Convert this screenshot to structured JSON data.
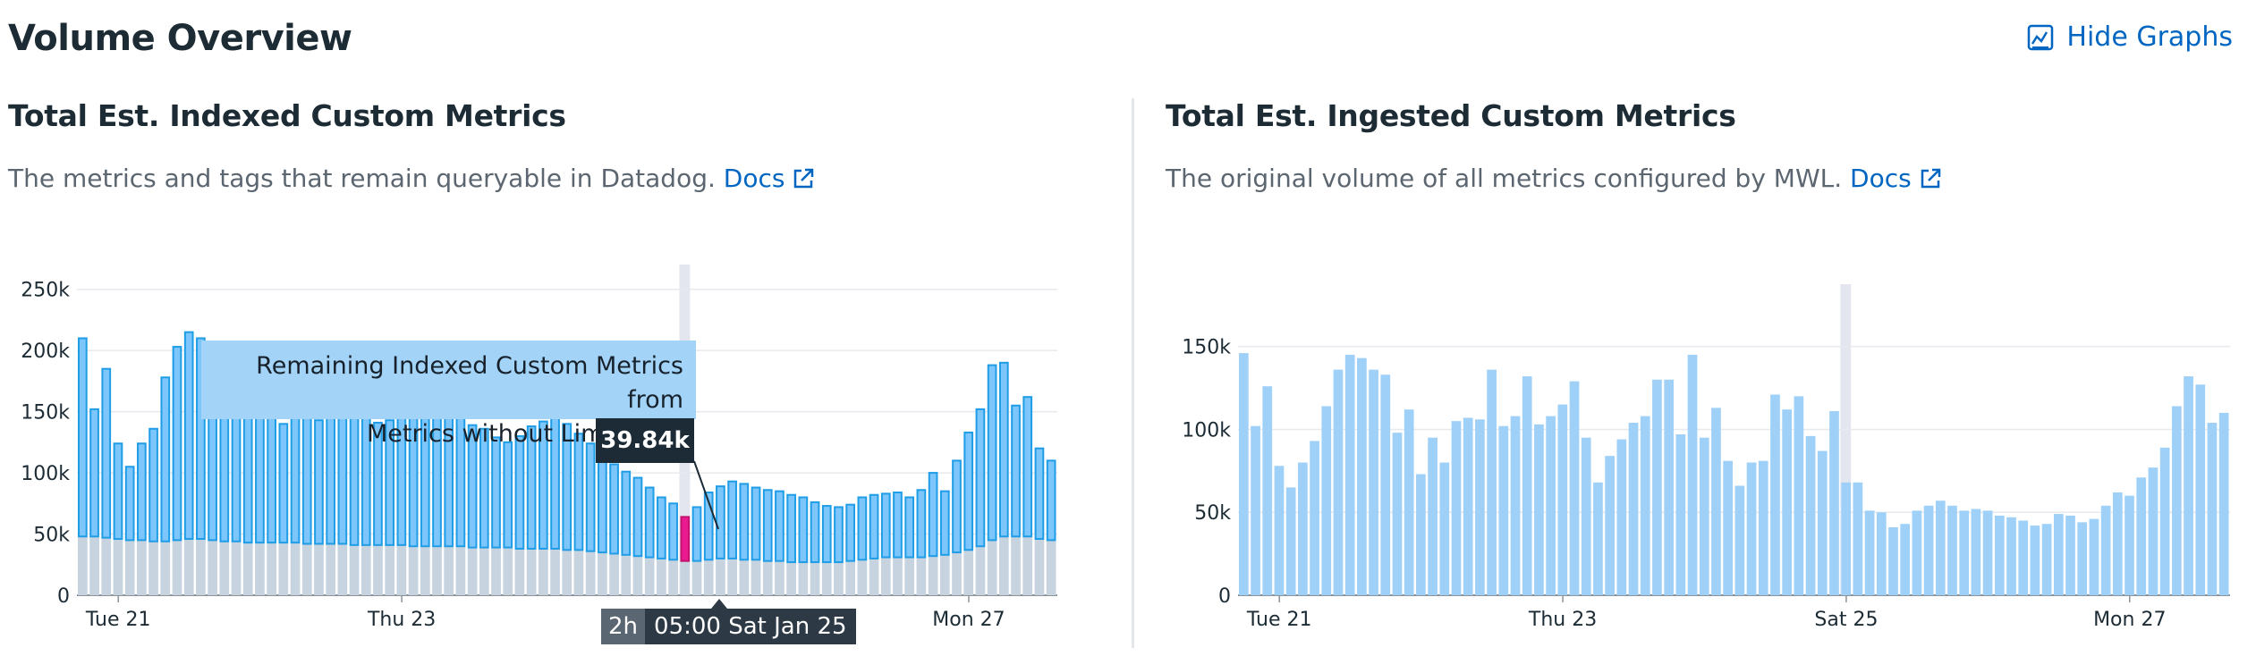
{
  "header": {
    "title": "Volume Overview",
    "hide_graphs_label": "Hide Graphs"
  },
  "panels": {
    "indexed": {
      "title": "Total Est. Indexed Custom Metrics",
      "description": "The metrics and tags that remain queryable in Datadog.",
      "docs_label": "Docs"
    },
    "ingested": {
      "title": "Total Est. Ingested Custom Metrics",
      "description": "The original volume of all metrics configured by MWL.",
      "docs_label": "Docs"
    }
  },
  "tooltip": {
    "line1": "Remaining Indexed Custom Metrics from",
    "line2": "Metrics without Limits use",
    "value": "39.84k",
    "duration": "2h",
    "timestamp": "05:00 Sat Jan 25"
  },
  "colors": {
    "accent_blue": "#0066c2",
    "bar_blue": "#7dc6fb",
    "bar_border": "#1f9de6",
    "bar_gray": "#c7d3df",
    "highlight_pink": "#ea1a91",
    "ingested_blue": "#9fd0f8"
  },
  "chart_data": [
    {
      "type": "bar",
      "title": "Total Est. Indexed Custom Metrics",
      "stacked": true,
      "ylim": [
        0,
        260000
      ],
      "y_ticks": [
        "0",
        "50k",
        "100k",
        "150k",
        "200k",
        "250k"
      ],
      "x_ticks": [
        {
          "label": "Tue 21",
          "index": 3
        },
        {
          "label": "Thu 23",
          "index": 27
        },
        {
          "label": "Mon 27",
          "index": 75
        }
      ],
      "highlight_index": 51,
      "series": [
        {
          "name": "Remaining Indexed Custom Metrics from Metrics without Limits use",
          "values": [
            40000,
            47000,
            48000,
            47000,
            46000,
            45000,
            48000,
            47000,
            46000,
            45000,
            46000,
            44000,
            43000,
            44000,
            42000,
            44000,
            43000,
            42000,
            44000,
            43000,
            41000,
            43000,
            42000,
            41000,
            42000,
            40000,
            42000,
            43000,
            41000,
            40000,
            39000,
            41000,
            42000,
            40000,
            39000,
            40000,
            39000,
            38000,
            39000,
            40000,
            38000,
            37000,
            38000,
            36000,
            37000,
            35000,
            34000,
            33000,
            32000,
            31000,
            30000,
            39840,
            30000,
            32000,
            33000,
            32000,
            31000,
            30000,
            30000,
            29000,
            29000,
            28000,
            28000,
            27000,
            27000,
            28000,
            29000,
            30000,
            31000,
            31000,
            30000,
            30000,
            30000,
            31000,
            33000,
            34000,
            35000,
            37000,
            40000,
            38000,
            35000,
            33000,
            30000
          ],
          "visible_total": [
            210000,
            152000,
            185000,
            124000,
            105000,
            124000,
            136000,
            178000,
            203000,
            215000,
            210000,
            199000,
            185000,
            155000,
            173000,
            150000,
            152000,
            140000,
            148000,
            150000,
            143000,
            146000,
            155000,
            150000,
            147000,
            141000,
            143000,
            152000,
            157000,
            146000,
            148000,
            153000,
            150000,
            139000,
            136000,
            129000,
            125000,
            130000,
            138000,
            142000,
            154000,
            140000,
            132000,
            124000,
            115000,
            107000,
            101000,
            96000,
            88000,
            80000,
            75000,
            64000,
            72000,
            84000,
            89000,
            93000,
            91000,
            88000,
            86000,
            85000,
            82000,
            80000,
            76000,
            73000,
            72000,
            74000,
            80000,
            82000,
            83000,
            84000,
            80000,
            86000,
            100000,
            85000,
            110000,
            133000,
            152000,
            188000,
            190000,
            155000,
            162000,
            120000,
            110000
          ]
        },
        {
          "name": "Base",
          "values": [
            48000,
            48000,
            47000,
            46000,
            45000,
            45000,
            44000,
            44000,
            45000,
            46000,
            46000,
            45000,
            44000,
            44000,
            43000,
            43000,
            43000,
            43000,
            43000,
            42000,
            42000,
            42000,
            42000,
            41000,
            41000,
            41000,
            41000,
            41000,
            40000,
            40000,
            40000,
            40000,
            40000,
            39000,
            39000,
            39000,
            39000,
            38000,
            38000,
            38000,
            38000,
            37000,
            37000,
            36000,
            35000,
            34000,
            33000,
            32000,
            31000,
            30000,
            29000,
            28000,
            28000,
            29000,
            30000,
            30000,
            29000,
            29000,
            28000,
            28000,
            27000,
            27000,
            27000,
            27000,
            27000,
            28000,
            29000,
            30000,
            31000,
            31000,
            31000,
            31000,
            32000,
            33000,
            35000,
            37000,
            40000,
            45000,
            48000,
            48000,
            48000,
            46000,
            45000
          ]
        }
      ]
    },
    {
      "type": "bar",
      "title": "Total Est. Ingested Custom Metrics",
      "ylim": [
        0,
        180000
      ],
      "y_ticks": [
        "0",
        "50k",
        "100k",
        "150k"
      ],
      "x_ticks": [
        {
          "label": "Tue 21",
          "index": 3
        },
        {
          "label": "Thu 23",
          "index": 27
        },
        {
          "label": "Sat 25",
          "index": 51
        },
        {
          "label": "Mon 27",
          "index": 75
        }
      ],
      "highlight_index": 51,
      "values": [
        146000,
        102000,
        126000,
        78000,
        65000,
        80000,
        93000,
        114000,
        136000,
        145000,
        143000,
        136000,
        133000,
        98000,
        112000,
        73000,
        95000,
        80000,
        105000,
        107000,
        106000,
        136000,
        102000,
        108000,
        132000,
        103000,
        108000,
        115000,
        129000,
        95000,
        68000,
        84000,
        94000,
        104000,
        108000,
        130000,
        130000,
        97000,
        145000,
        95000,
        113000,
        81000,
        66000,
        80000,
        81000,
        121000,
        112000,
        120000,
        96000,
        87000,
        111000,
        68000,
        68000,
        51000,
        50000,
        41000,
        43000,
        51000,
        54000,
        57000,
        54000,
        51000,
        52000,
        51000,
        48000,
        47000,
        45000,
        42000,
        43000,
        49000,
        48000,
        44000,
        46000,
        54000,
        62000,
        60000,
        71000,
        77000,
        89000,
        114000,
        132000,
        127000,
        104000,
        110000
      ]
    }
  ]
}
